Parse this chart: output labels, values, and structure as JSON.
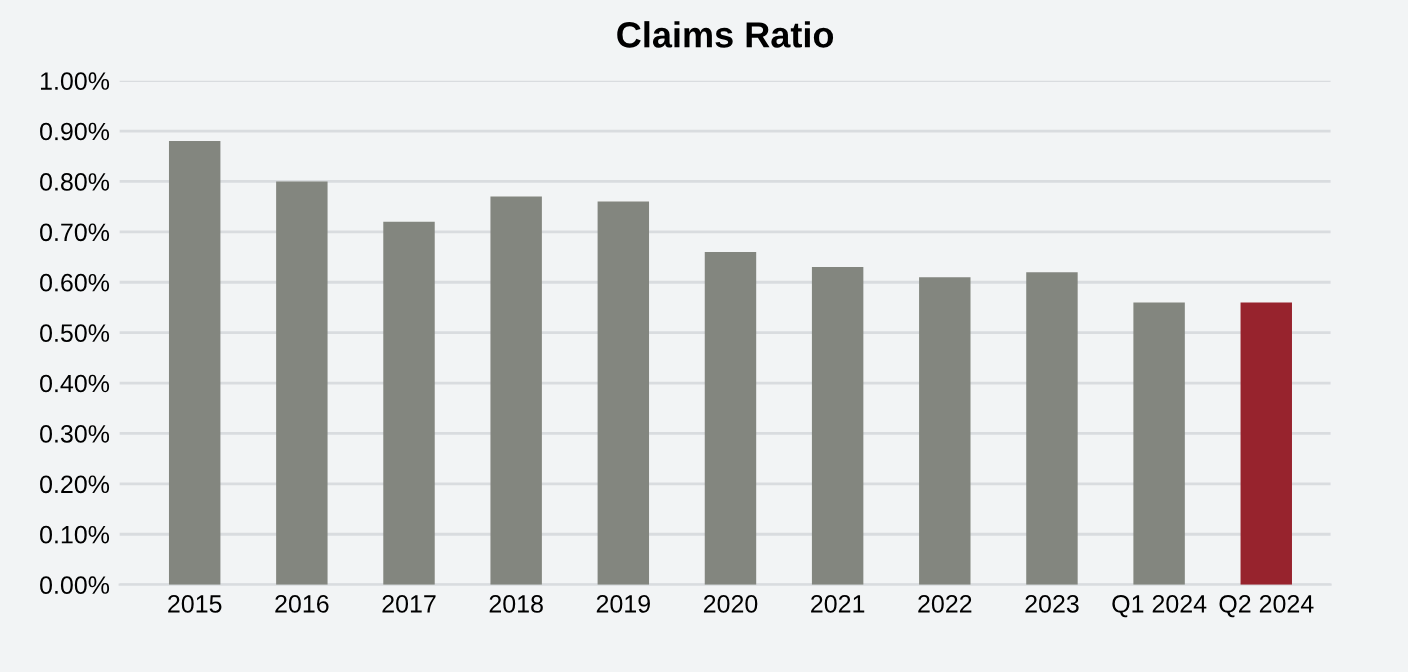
{
  "chart_data": {
    "type": "bar",
    "title": "Claims Ratio",
    "categories": [
      "2015",
      "2016",
      "2017",
      "2018",
      "2019",
      "2020",
      "2021",
      "2022",
      "2023",
      "Q1 2024",
      "Q2 2024"
    ],
    "values": [
      0.88,
      0.8,
      0.72,
      0.77,
      0.76,
      0.66,
      0.63,
      0.61,
      0.62,
      0.56,
      0.56
    ],
    "colors": [
      "#83867f",
      "#83867f",
      "#83867f",
      "#83867f",
      "#83867f",
      "#83867f",
      "#83867f",
      "#83867f",
      "#83867f",
      "#83867f",
      "#97232d"
    ],
    "ylim": [
      0,
      1.0
    ],
    "yticks": [
      {
        "value": 0,
        "label": "0.00%"
      },
      {
        "value": 0.1,
        "label": "0.10%"
      },
      {
        "value": 0.2,
        "label": "0.20%"
      },
      {
        "value": 0.3,
        "label": "0.30%"
      },
      {
        "value": 0.4,
        "label": "0.40%"
      },
      {
        "value": 0.5,
        "label": "0.50%"
      },
      {
        "value": 0.6,
        "label": "0.60%"
      },
      {
        "value": 0.7,
        "label": "0.70%"
      },
      {
        "value": 0.8,
        "label": "0.80%"
      },
      {
        "value": 0.9,
        "label": "0.90%"
      },
      {
        "value": 1.0,
        "label": "1.00%"
      }
    ],
    "grid": "y"
  }
}
